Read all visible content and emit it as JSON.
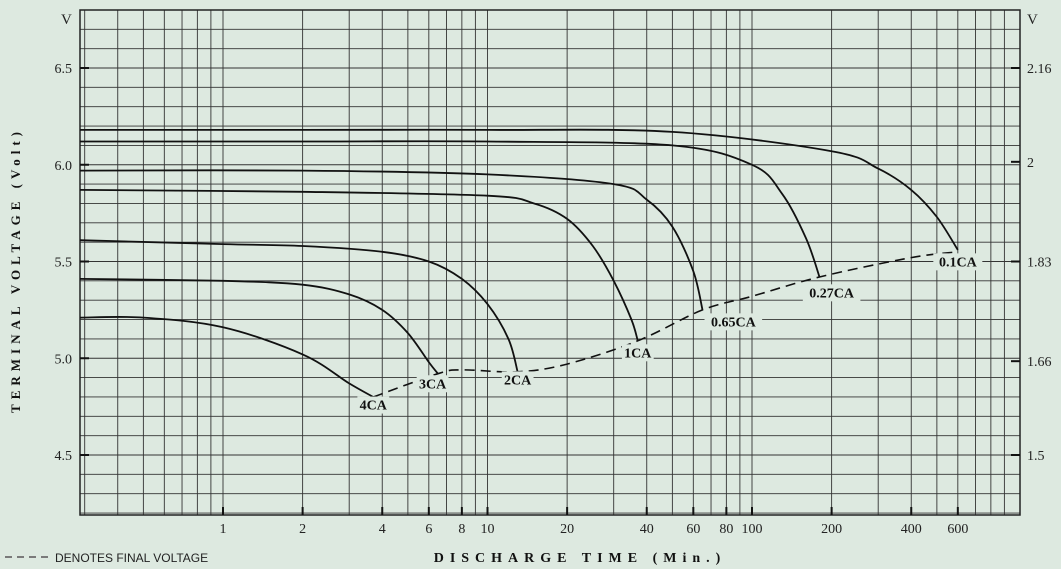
{
  "chart_data": {
    "type": "line",
    "xlabel": "DISCHARGE TIME (Min.)",
    "ylabel": "TERMINAL VOLTAGE (Volt)",
    "y_unit_left": "V",
    "y_unit_right": "V",
    "x_scale": "log",
    "xlim": [
      0.2,
      1000
    ],
    "ylim": [
      4.2,
      6.85
    ],
    "x_ticks": [
      1,
      2,
      4,
      6,
      8,
      10,
      20,
      40,
      60,
      80,
      100,
      200,
      400,
      600
    ],
    "x_tick_labels": [
      "1",
      "2",
      "4",
      "6",
      "8",
      "10",
      "20",
      "40",
      "60",
      "80",
      "100",
      "200",
      "400",
      "600"
    ],
    "y_ticks_left": [
      4.5,
      5.0,
      5.5,
      6.0,
      6.5
    ],
    "y_tick_labels_left": [
      "4.5",
      "5.0",
      "5.5",
      "6.0",
      "6.5"
    ],
    "y_ticks_right": [
      1.5,
      1.66,
      1.83,
      2,
      2.16
    ],
    "y_tick_labels_right": [
      "1.5",
      "1.66",
      "1.83",
      "2",
      "2.16"
    ],
    "grid": true,
    "legend": {
      "position": "bottom-left",
      "text": "DENOTES FINAL VOLTAGE"
    },
    "series": [
      {
        "name": "4CA",
        "x": [
          0.2,
          0.5,
          1,
          2,
          3,
          3.7
        ],
        "y": [
          5.21,
          5.21,
          5.16,
          5.02,
          4.87,
          4.8
        ]
      },
      {
        "name": "3CA",
        "x": [
          0.2,
          1,
          2,
          3,
          4,
          5,
          6,
          6.5
        ],
        "y": [
          5.41,
          5.4,
          5.38,
          5.33,
          5.25,
          5.13,
          4.98,
          4.92
        ]
      },
      {
        "name": "2CA",
        "x": [
          0.2,
          1,
          2,
          4,
          6,
          8,
          10,
          12,
          13
        ],
        "y": [
          5.61,
          5.59,
          5.58,
          5.55,
          5.5,
          5.41,
          5.28,
          5.1,
          4.93
        ]
      },
      {
        "name": "1CA",
        "x": [
          0.2,
          2,
          10,
          15,
          20,
          25,
          30,
          35,
          37
        ],
        "y": [
          5.87,
          5.86,
          5.84,
          5.8,
          5.72,
          5.58,
          5.4,
          5.2,
          5.09
        ]
      },
      {
        "name": "0.65CA",
        "x": [
          0.2,
          2,
          10,
          30,
          40,
          50,
          60,
          65
        ],
        "y": [
          5.97,
          5.97,
          5.95,
          5.9,
          5.82,
          5.68,
          5.45,
          5.25
        ]
      },
      {
        "name": "0.27CA",
        "x": [
          0.2,
          2,
          10,
          50,
          100,
          130,
          160,
          180
        ],
        "y": [
          6.12,
          6.12,
          6.12,
          6.1,
          6.0,
          5.85,
          5.62,
          5.42
        ]
      },
      {
        "name": "0.1CA",
        "x": [
          0.2,
          2,
          10,
          50,
          200,
          300,
          400,
          500,
          600
        ],
        "y": [
          6.18,
          6.18,
          6.18,
          6.17,
          6.07,
          5.98,
          5.87,
          5.73,
          5.56
        ]
      }
    ],
    "final_voltage": {
      "x": [
        3.7,
        6.5,
        8,
        13,
        20,
        37,
        65,
        100,
        180,
        400,
        600
      ],
      "y": [
        4.8,
        4.92,
        4.94,
        4.93,
        4.97,
        5.09,
        5.25,
        5.32,
        5.42,
        5.52,
        5.55
      ]
    },
    "annotations": [
      {
        "text": "4CA",
        "x": 3.7,
        "y": 4.74
      },
      {
        "text": "3CA",
        "x": 6.2,
        "y": 4.85
      },
      {
        "text": "2CA",
        "x": 13,
        "y": 4.87
      },
      {
        "text": "1CA",
        "x": 37,
        "y": 5.01
      },
      {
        "text": "0.65CA",
        "x": 85,
        "y": 5.17
      },
      {
        "text": "0.27CA",
        "x": 200,
        "y": 5.32
      },
      {
        "text": "0.1CA",
        "x": 600,
        "y": 5.48
      }
    ]
  }
}
